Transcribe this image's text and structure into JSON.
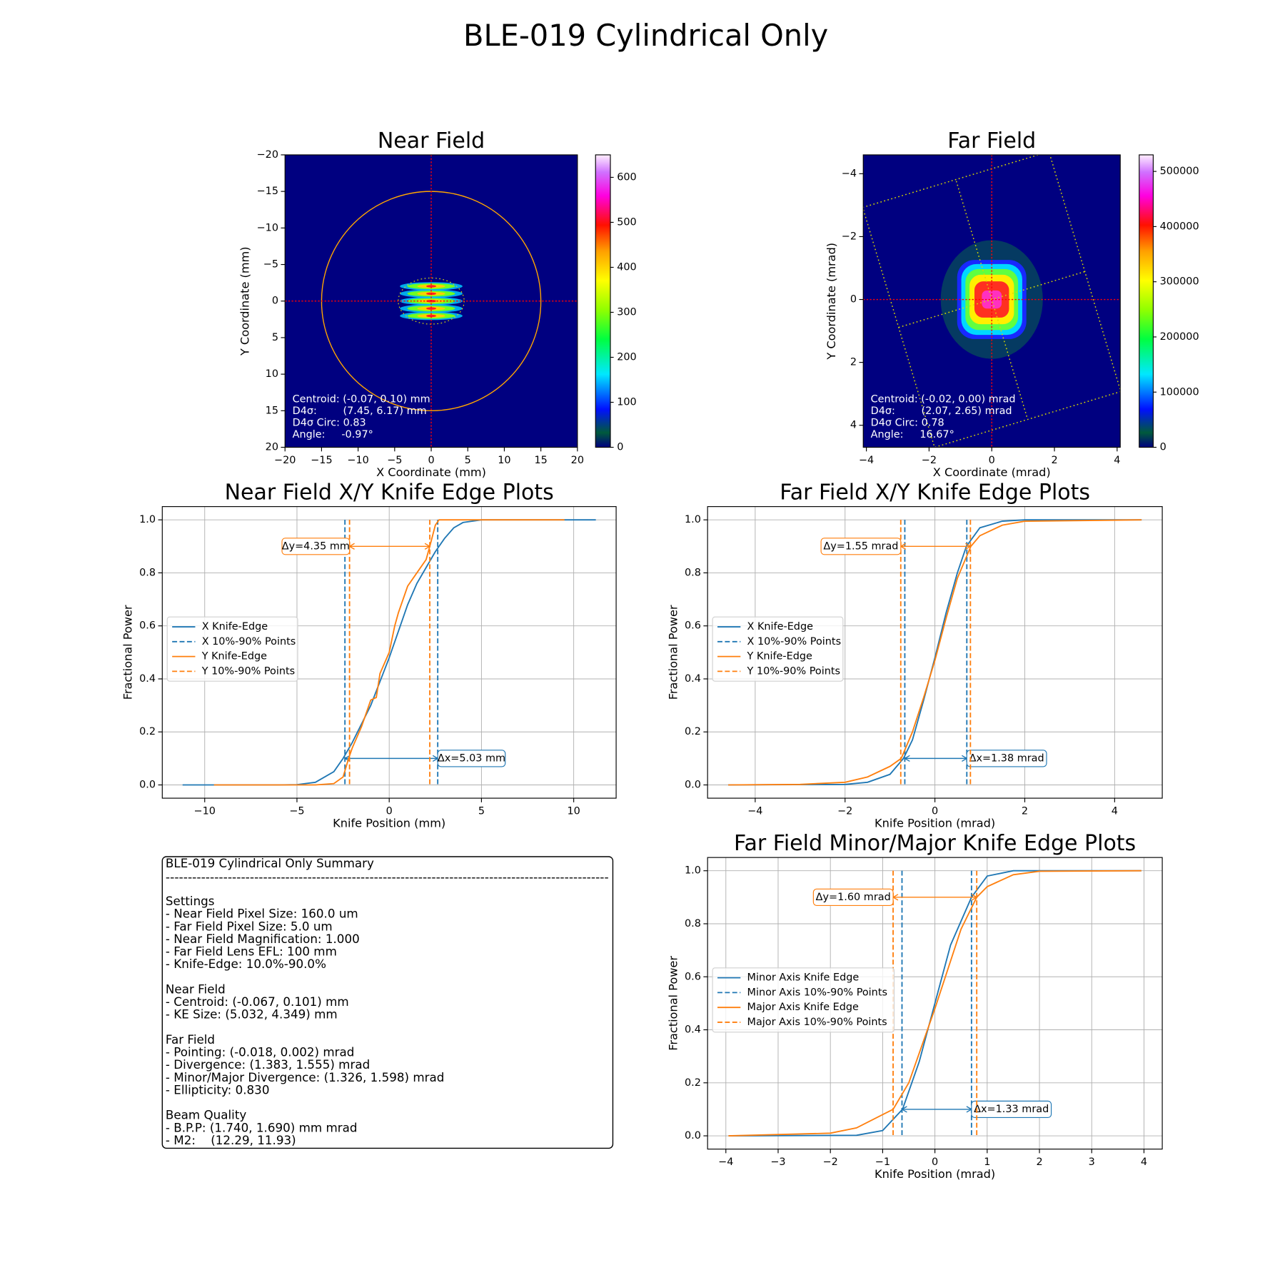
{
  "title": "BLE-019 Cylindrical Only",
  "chart_data": [
    {
      "type": "image",
      "title": "Near Field",
      "xlabel": "X Coordinate (mm)",
      "ylabel": "Y Coordinate (mm)",
      "xlim": [
        -20,
        20
      ],
      "ylim": [
        20,
        -20
      ],
      "xticks": [
        {
          "value": -20,
          "label": "−20"
        },
        {
          "value": -15,
          "label": "−15"
        },
        {
          "value": -10,
          "label": "−10"
        },
        {
          "value": -5,
          "label": "−5"
        },
        0,
        5,
        10,
        15,
        20
      ],
      "yticks": [
        {
          "value": -20,
          "label": "−20"
        },
        {
          "value": -15,
          "label": "−15"
        },
        {
          "value": -10,
          "label": "−10"
        },
        {
          "value": -5,
          "label": "−5"
        },
        0,
        5,
        10,
        15,
        20
      ],
      "colorbar": {
        "lim": [
          0,
          650
        ],
        "ticks": [
          0,
          100,
          200,
          300,
          400,
          500,
          600
        ]
      },
      "annotation": [
        "Centroid: (-0.07, 0.10) mm",
        "D4σ:        (7.45, 6.17) mm",
        "D4σ Circ: 0.83",
        "Angle:     -0.97°"
      ]
    },
    {
      "type": "image",
      "title": "Far Field",
      "xlabel": "X Coordinate (mrad)",
      "ylabel": "Y Coordinate (mrad)",
      "xlim": [
        -4.1,
        4.1
      ],
      "ylim": [
        4.7,
        -4.6
      ],
      "xticks": [
        {
          "value": -4,
          "label": "−4"
        },
        {
          "value": -2,
          "label": "−2"
        },
        0,
        2,
        4
      ],
      "yticks": [
        {
          "value": -4,
          "label": "−4"
        },
        {
          "value": -2,
          "label": "−2"
        },
        0,
        2,
        4
      ],
      "colorbar": {
        "lim": [
          0,
          530000
        ],
        "ticks": [
          0,
          100000,
          200000,
          300000,
          400000,
          500000
        ]
      },
      "annotation": [
        "Centroid: (-0.02, 0.00) mrad",
        "D4σ:        (2.07, 2.65) mrad",
        "D4σ Circ: 0.78",
        "Angle:     16.67°"
      ]
    },
    {
      "type": "line",
      "title": "Near Field X/Y Knife Edge Plots",
      "xlabel": "Knife Position (mm)",
      "ylabel": "Fractional Power",
      "xlim": [
        -12.3,
        12.3
      ],
      "ylim": [
        -0.05,
        1.05
      ],
      "grid": true,
      "legend": "center left",
      "xticks": [
        {
          "value": -10,
          "label": "−10"
        },
        {
          "value": -5,
          "label": "−5"
        },
        0,
        5,
        10
      ],
      "yticks": [
        {
          "value": 0,
          "label": "0.0"
        },
        {
          "value": 0.2,
          "label": "0.2"
        },
        {
          "value": 0.4,
          "label": "0.4"
        },
        {
          "value": 0.6,
          "label": "0.6"
        },
        {
          "value": 0.8,
          "label": "0.8"
        },
        {
          "value": 1,
          "label": "1.0"
        }
      ],
      "series": [
        {
          "name": "X Knife-Edge",
          "color": "#1f77b4",
          "x": [
            -11.2,
            -6,
            -5,
            -4,
            -3,
            -2.5,
            -2,
            -1.5,
            -1,
            -0.5,
            0,
            0.5,
            1,
            1.5,
            2,
            2.5,
            3,
            3.5,
            4,
            5,
            11.2
          ],
          "values": [
            0,
            0,
            0.001,
            0.01,
            0.05,
            0.1,
            0.16,
            0.23,
            0.3,
            0.39,
            0.48,
            0.58,
            0.68,
            0.76,
            0.82,
            0.88,
            0.93,
            0.97,
            0.99,
            1,
            1
          ],
          "markers": {
            "name": "X 10%-90% Points",
            "values": [
              -2.4,
              2.63
            ],
            "annotation": "Δx=5.03 mm"
          }
        },
        {
          "name": "Y Knife-Edge",
          "color": "#ff7f0e",
          "x": [
            -9.5,
            -4,
            -3,
            -2.5,
            -2.2,
            -2,
            -1.5,
            -1,
            -0.7,
            -0.5,
            0,
            0.3,
            0.5,
            1,
            1.5,
            2,
            2.2,
            2.5,
            2.7,
            3,
            9.5
          ],
          "values": [
            0,
            0,
            0.005,
            0.03,
            0.1,
            0.14,
            0.22,
            0.32,
            0.33,
            0.42,
            0.5,
            0.6,
            0.65,
            0.75,
            0.8,
            0.85,
            0.9,
            0.98,
            1,
            1,
            1
          ],
          "markers": {
            "name": "Y 10%-90% Points",
            "values": [
              -2.15,
              2.2
            ],
            "annotation": "Δy=4.35 mm"
          }
        }
      ]
    },
    {
      "type": "line",
      "title": "Far Field X/Y Knife Edge Plots",
      "xlabel": "Knife Position (mrad)",
      "ylabel": "Fractional Power",
      "xlim": [
        -5.06,
        5.06
      ],
      "ylim": [
        -0.05,
        1.05
      ],
      "grid": true,
      "legend": "center left",
      "xticks": [
        {
          "value": -4,
          "label": "−4"
        },
        {
          "value": -2,
          "label": "−2"
        },
        0,
        2,
        4
      ],
      "yticks": [
        {
          "value": 0,
          "label": "0.0"
        },
        {
          "value": 0.2,
          "label": "0.2"
        },
        {
          "value": 0.4,
          "label": "0.4"
        },
        {
          "value": 0.6,
          "label": "0.6"
        },
        {
          "value": 0.8,
          "label": "0.8"
        },
        {
          "value": 1,
          "label": "1.0"
        }
      ],
      "series": [
        {
          "name": "X Knife-Edge",
          "color": "#1f77b4",
          "x": [
            -4.6,
            -2,
            -1.5,
            -1,
            -0.7,
            -0.5,
            -0.25,
            0,
            0.25,
            0.5,
            0.7,
            1,
            1.5,
            2,
            4.6
          ],
          "values": [
            0,
            0.002,
            0.01,
            0.04,
            0.1,
            0.17,
            0.32,
            0.48,
            0.65,
            0.8,
            0.9,
            0.97,
            0.995,
            1,
            1
          ],
          "markers": {
            "name": "X 10%-90% Points",
            "values": [
              -0.67,
              0.71
            ],
            "annotation": "Δx=1.38 mrad"
          }
        },
        {
          "name": "Y Knife-Edge",
          "color": "#ff7f0e",
          "x": [
            -4.6,
            -3,
            -2,
            -1.5,
            -1,
            -0.75,
            -0.5,
            -0.25,
            0,
            0.25,
            0.5,
            0.8,
            1,
            1.5,
            2,
            4.6
          ],
          "values": [
            0,
            0.002,
            0.01,
            0.03,
            0.07,
            0.1,
            0.2,
            0.33,
            0.47,
            0.63,
            0.78,
            0.9,
            0.94,
            0.98,
            0.995,
            1
          ],
          "markers": {
            "name": "Y 10%-90% Points",
            "values": [
              -0.76,
              0.79
            ],
            "annotation": "Δy=1.55 mrad"
          }
        }
      ]
    },
    {
      "type": "line",
      "title": "Far Field Minor/Major Knife Edge Plots",
      "xlabel": "Knife Position (mrad)",
      "ylabel": "Fractional Power",
      "xlim": [
        -4.35,
        4.35
      ],
      "ylim": [
        -0.05,
        1.05
      ],
      "grid": true,
      "legend": "center left",
      "xticks": [
        {
          "value": -4,
          "label": "−4"
        },
        {
          "value": -3,
          "label": "−3"
        },
        {
          "value": -2,
          "label": "−2"
        },
        {
          "value": -1,
          "label": "−1"
        },
        0,
        1,
        2,
        3,
        4
      ],
      "yticks": [
        {
          "value": 0,
          "label": "0.0"
        },
        {
          "value": 0.2,
          "label": "0.2"
        },
        {
          "value": 0.4,
          "label": "0.4"
        },
        {
          "value": 0.6,
          "label": "0.6"
        },
        {
          "value": 0.8,
          "label": "0.8"
        },
        {
          "value": 1,
          "label": "1.0"
        }
      ],
      "series": [
        {
          "name": "Minor Axis Knife Edge",
          "color": "#1f77b4",
          "x": [
            -3.95,
            -1.5,
            -1,
            -0.62,
            -0.3,
            0,
            0.3,
            0.7,
            1,
            1.5,
            3.95
          ],
          "values": [
            0,
            0.002,
            0.02,
            0.1,
            0.28,
            0.5,
            0.72,
            0.9,
            0.98,
            1,
            1
          ],
          "markers": {
            "name": "Minor Axis 10%-90% Points",
            "values": [
              -0.63,
              0.7
            ],
            "annotation": "Δx=1.33 mrad"
          }
        },
        {
          "name": "Major Axis Knife Edge",
          "color": "#ff7f0e",
          "x": [
            -3.95,
            -2,
            -1.5,
            -1,
            -0.8,
            -0.5,
            0,
            0.5,
            0.8,
            1,
            1.5,
            2,
            3.95
          ],
          "values": [
            0,
            0.01,
            0.03,
            0.08,
            0.1,
            0.2,
            0.48,
            0.78,
            0.9,
            0.94,
            0.985,
            0.998,
            1
          ],
          "markers": {
            "name": "Major Axis 10%-90% Points",
            "values": [
              -0.8,
              0.8
            ],
            "annotation": "Δy=1.60 mrad"
          }
        }
      ]
    }
  ],
  "summary": {
    "title": "BLE-019 Cylindrical Only Summary",
    "rule": "----------------------------------------------------------------------------------------------------",
    "sections": [
      {
        "heading": "Settings",
        "items": [
          "- Near Field Pixel Size: 160.0 um",
          "- Far Field Pixel Size: 5.0 um",
          "- Near Field Magnification: 1.000",
          "- Far Field Lens EFL: 100 mm",
          "- Knife-Edge: 10.0%-90.0%"
        ]
      },
      {
        "heading": "Near Field",
        "items": [
          "- Centroid: (-0.067, 0.101) mm",
          "- KE Size: (5.032, 4.349) mm"
        ]
      },
      {
        "heading": "Far Field",
        "items": [
          "- Pointing: (-0.018, 0.002) mrad",
          "- Divergence: (1.383, 1.555) mrad",
          "- Minor/Major Divergence: (1.326, 1.598) mrad",
          "- Ellipticity: 0.830"
        ]
      },
      {
        "heading": "Beam Quality",
        "items": [
          "- B.P.P: (1.740, 1.690) mm mrad",
          "- M2:    (12.29, 11.93)"
        ]
      }
    ]
  }
}
